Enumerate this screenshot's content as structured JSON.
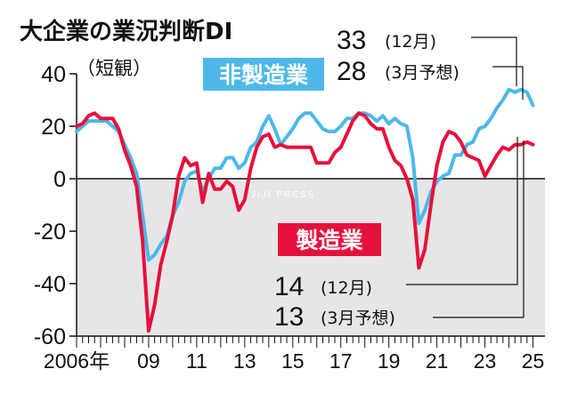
{
  "chart_data": {
    "type": "line",
    "title": "大企業の業況判断DI",
    "subtitle": "（短観）",
    "y_ticks": [
      "40",
      "20",
      "0",
      "-20",
      "-40",
      "-60"
    ],
    "ylim": [
      -60,
      40
    ],
    "x_tick_labels": [
      {
        "year": 2006,
        "label": "2006年"
      },
      {
        "year": 2009,
        "label": "09"
      },
      {
        "year": 2011,
        "label": "11"
      },
      {
        "year": 2013,
        "label": "13"
      },
      {
        "year": 2015,
        "label": "15"
      },
      {
        "year": 2017,
        "label": "17"
      },
      {
        "year": 2019,
        "label": "19"
      },
      {
        "year": 2021,
        "label": "21"
      },
      {
        "year": 2023,
        "label": "23"
      },
      {
        "year": 2025,
        "label": "25"
      }
    ],
    "series": [
      {
        "name": "非製造業",
        "color": "#4db8e8",
        "points": [
          [
            2006.0,
            18
          ],
          [
            2006.25,
            20
          ],
          [
            2006.5,
            22
          ],
          [
            2006.75,
            22
          ],
          [
            2007.0,
            22
          ],
          [
            2007.25,
            22
          ],
          [
            2007.5,
            20
          ],
          [
            2007.75,
            18
          ],
          [
            2008.0,
            13
          ],
          [
            2008.25,
            8
          ],
          [
            2008.5,
            2
          ],
          [
            2008.75,
            -14
          ],
          [
            2009.0,
            -31
          ],
          [
            2009.25,
            -29
          ],
          [
            2009.5,
            -25
          ],
          [
            2009.75,
            -22
          ],
          [
            2010.0,
            -14
          ],
          [
            2010.25,
            -9
          ],
          [
            2010.5,
            -1
          ],
          [
            2010.75,
            2
          ],
          [
            2011.0,
            3
          ],
          [
            2011.25,
            -5
          ],
          [
            2011.5,
            0
          ],
          [
            2011.75,
            4
          ],
          [
            2012.0,
            4
          ],
          [
            2012.25,
            8
          ],
          [
            2012.5,
            8
          ],
          [
            2012.75,
            4
          ],
          [
            2013.0,
            6
          ],
          [
            2013.25,
            12
          ],
          [
            2013.5,
            14
          ],
          [
            2013.75,
            20
          ],
          [
            2014.0,
            24
          ],
          [
            2014.25,
            19
          ],
          [
            2014.5,
            13
          ],
          [
            2014.75,
            16
          ],
          [
            2015.0,
            19
          ],
          [
            2015.25,
            23
          ],
          [
            2015.5,
            25
          ],
          [
            2015.75,
            25
          ],
          [
            2016.0,
            22
          ],
          [
            2016.25,
            19
          ],
          [
            2016.5,
            18
          ],
          [
            2016.75,
            18
          ],
          [
            2017.0,
            20
          ],
          [
            2017.25,
            23
          ],
          [
            2017.5,
            23
          ],
          [
            2017.75,
            25
          ],
          [
            2018.0,
            25
          ],
          [
            2018.25,
            24
          ],
          [
            2018.5,
            22
          ],
          [
            2018.75,
            24
          ],
          [
            2019.0,
            21
          ],
          [
            2019.25,
            23
          ],
          [
            2019.5,
            21
          ],
          [
            2019.75,
            20
          ],
          [
            2020.0,
            8
          ],
          [
            2020.25,
            -17
          ],
          [
            2020.5,
            -12
          ],
          [
            2020.75,
            -5
          ],
          [
            2021.0,
            -1
          ],
          [
            2021.25,
            1
          ],
          [
            2021.5,
            2
          ],
          [
            2021.75,
            9
          ],
          [
            2022.0,
            9
          ],
          [
            2022.25,
            13
          ],
          [
            2022.5,
            14
          ],
          [
            2022.75,
            19
          ],
          [
            2023.0,
            20
          ],
          [
            2023.25,
            23
          ],
          [
            2023.5,
            27
          ],
          [
            2023.75,
            30
          ],
          [
            2024.0,
            34
          ],
          [
            2024.25,
            33
          ],
          [
            2024.5,
            34
          ],
          [
            2024.75,
            33
          ],
          [
            2025.0,
            28
          ]
        ]
      },
      {
        "name": "製造業",
        "color": "#e6103c",
        "points": [
          [
            2006.0,
            20
          ],
          [
            2006.25,
            21
          ],
          [
            2006.5,
            24
          ],
          [
            2006.75,
            25
          ],
          [
            2007.0,
            23
          ],
          [
            2007.25,
            23
          ],
          [
            2007.5,
            23
          ],
          [
            2007.75,
            19
          ],
          [
            2008.0,
            11
          ],
          [
            2008.25,
            5
          ],
          [
            2008.5,
            -3
          ],
          [
            2008.75,
            -24
          ],
          [
            2009.0,
            -58
          ],
          [
            2009.25,
            -48
          ],
          [
            2009.5,
            -33
          ],
          [
            2009.75,
            -24
          ],
          [
            2010.0,
            -14
          ],
          [
            2010.25,
            1
          ],
          [
            2010.5,
            8
          ],
          [
            2010.75,
            5
          ],
          [
            2011.0,
            6
          ],
          [
            2011.25,
            -9
          ],
          [
            2011.5,
            2
          ],
          [
            2011.75,
            -4
          ],
          [
            2012.0,
            -4
          ],
          [
            2012.25,
            -1
          ],
          [
            2012.5,
            -3
          ],
          [
            2012.75,
            -12
          ],
          [
            2013.0,
            -8
          ],
          [
            2013.25,
            4
          ],
          [
            2013.5,
            12
          ],
          [
            2013.75,
            16
          ],
          [
            2014.0,
            17
          ],
          [
            2014.25,
            12
          ],
          [
            2014.5,
            13
          ],
          [
            2014.75,
            12
          ],
          [
            2015.0,
            12
          ],
          [
            2015.25,
            12
          ],
          [
            2015.5,
            12
          ],
          [
            2015.75,
            12
          ],
          [
            2016.0,
            6
          ],
          [
            2016.25,
            6
          ],
          [
            2016.5,
            6
          ],
          [
            2016.75,
            10
          ],
          [
            2017.0,
            12
          ],
          [
            2017.25,
            17
          ],
          [
            2017.5,
            22
          ],
          [
            2017.75,
            25
          ],
          [
            2018.0,
            24
          ],
          [
            2018.25,
            21
          ],
          [
            2018.5,
            19
          ],
          [
            2018.75,
            19
          ],
          [
            2019.0,
            12
          ],
          [
            2019.25,
            7
          ],
          [
            2019.5,
            5
          ],
          [
            2019.75,
            0
          ],
          [
            2020.0,
            -8
          ],
          [
            2020.25,
            -34
          ],
          [
            2020.5,
            -27
          ],
          [
            2020.75,
            -10
          ],
          [
            2021.0,
            5
          ],
          [
            2021.25,
            14
          ],
          [
            2021.5,
            18
          ],
          [
            2021.75,
            17
          ],
          [
            2022.0,
            14
          ],
          [
            2022.25,
            9
          ],
          [
            2022.5,
            8
          ],
          [
            2022.75,
            7
          ],
          [
            2023.0,
            1
          ],
          [
            2023.25,
            5
          ],
          [
            2023.5,
            9
          ],
          [
            2023.75,
            12
          ],
          [
            2024.0,
            11
          ],
          [
            2024.25,
            13
          ],
          [
            2024.5,
            13
          ],
          [
            2024.75,
            14
          ],
          [
            2025.0,
            13
          ]
        ]
      }
    ],
    "labels": {
      "nonmfg": "非製造業",
      "mfg": "製造業"
    },
    "annotations": {
      "nonmfg_dec_value": "33",
      "nonmfg_dec_text": "(12月)",
      "nonmfg_mar_value": "28",
      "nonmfg_mar_text": "(3月予想)",
      "mfg_dec_value": "14",
      "mfg_dec_text": "(12月)",
      "mfg_mar_value": "13",
      "mfg_mar_text": "(3月予想)"
    },
    "negative_region_fill": "#e6e6e6",
    "watermark": "JIJI PRESS"
  }
}
